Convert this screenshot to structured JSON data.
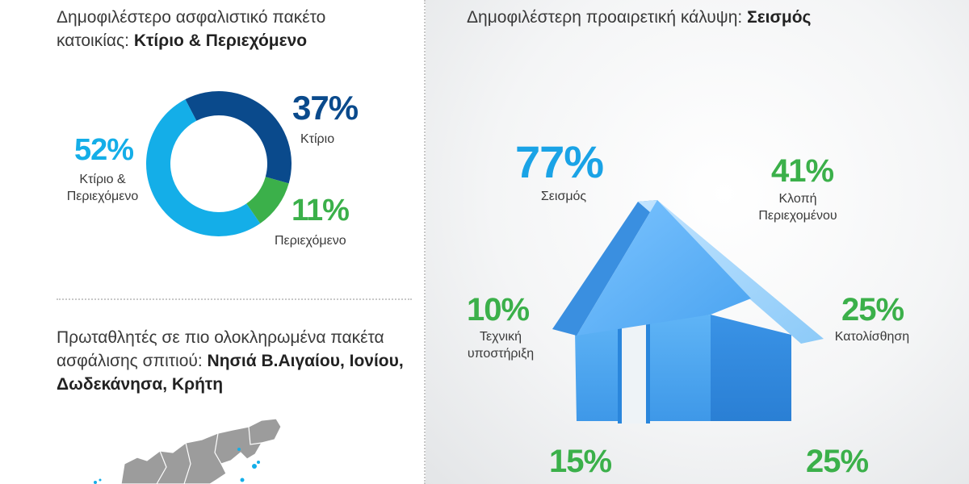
{
  "left": {
    "package_heading": {
      "text": "Δημοφιλέστερο ασφαλιστικό πακέτο κατοικίας: ",
      "bold": "Κτίριο & Περιεχόμενο"
    },
    "champions_heading": {
      "text": "Πρωταθλητές σε πιο ολοκληρωμένα πακέτα ασφάλισης σπιτιού: ",
      "bold": "Νησιά Β.Αιγαίου, Ιονίου, Δωδεκάνησα, Κρήτη"
    }
  },
  "right": {
    "heading": {
      "text": "Δημοφιλέστερη προαιρετική κάλυψη: ",
      "bold": "Σεισμός"
    },
    "coverages": [
      {
        "value": "77%",
        "label": "Σεισμός",
        "color": "#1aa3e6"
      },
      {
        "value": "41%",
        "label": "Κλοπή Περιεχομένου",
        "color": "#3bb04a"
      },
      {
        "value": "10%",
        "label": "Τεχνική υποστήριξη",
        "color": "#3bb04a"
      },
      {
        "value": "25%",
        "label": "Κατολίσθηση",
        "color": "#3bb04a"
      },
      {
        "value": "15%",
        "label": "",
        "color": "#3bb04a"
      },
      {
        "value": "25%",
        "label": "",
        "color": "#3bb04a"
      }
    ]
  },
  "chart_data": {
    "type": "pie",
    "categories": [
      "Κτίριο",
      "Περιεχόμενο",
      "Κτίριο & Περιεχόμενο"
    ],
    "values": [
      37,
      11,
      52
    ],
    "value_labels": [
      "37%",
      "11%",
      "52%"
    ],
    "colors": [
      "#0a4a8c",
      "#3bb04a",
      "#14aee8"
    ],
    "label_colors": [
      "#0a4a8c",
      "#3bb04a",
      "#14aee8"
    ]
  },
  "colors": {
    "accent_blue": "#14aee8",
    "dark_blue": "#0a4a8c",
    "green": "#3bb04a",
    "house_blue": "#4aa8f0",
    "map_gray": "#9a9a9a"
  }
}
